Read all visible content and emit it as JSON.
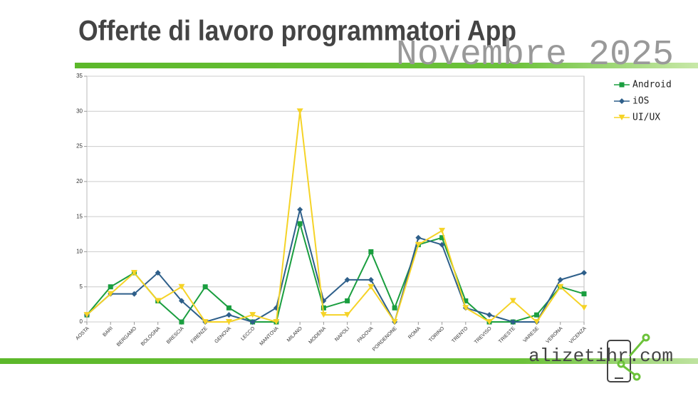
{
  "chart_data": {
    "type": "line",
    "title": "Offerte di lavoro programmatori App",
    "subtitle": "Novembre 2025",
    "brand": "alizetihr.com",
    "categories": [
      "AOSTA",
      "BARI",
      "BERGAMO",
      "BOLOGNA",
      "BRESCIA",
      "FIRENZE",
      "GENOVA",
      "LECCO",
      "MANTOVA",
      "MILANO",
      "MODENA",
      "NAPOLI",
      "PADOVA",
      "PORDENONE",
      "ROMA",
      "TORINO",
      "TRENTO",
      "TREVISO",
      "TRIESTE",
      "VARESE",
      "VERONA",
      "VICENZA"
    ],
    "series": [
      {
        "name": "Android",
        "color": "#1a9e3f",
        "marker": "square",
        "values": [
          1,
          5,
          7,
          3,
          0,
          5,
          2,
          0,
          0,
          14,
          2,
          3,
          10,
          2,
          11,
          12,
          3,
          0,
          0,
          1,
          5,
          4
        ]
      },
      {
        "name": "iOS",
        "color": "#2e5f8a",
        "marker": "diamond",
        "values": [
          1,
          4,
          4,
          7,
          3,
          0,
          1,
          0,
          2,
          16,
          3,
          6,
          6,
          0,
          12,
          11,
          2,
          1,
          0,
          0,
          6,
          7
        ]
      },
      {
        "name": "UI/UX",
        "color": "#f5d327",
        "marker": "triangle",
        "values": [
          1,
          4,
          7,
          3,
          5,
          0,
          0,
          1,
          0,
          30,
          1,
          1,
          5,
          0,
          11,
          13,
          2,
          0,
          3,
          0,
          5,
          2
        ]
      }
    ],
    "ylim": [
      0,
      35
    ],
    "yticks": [
      0,
      5,
      10,
      15,
      20,
      25,
      30,
      35
    ],
    "grid": true,
    "legend": "right"
  }
}
